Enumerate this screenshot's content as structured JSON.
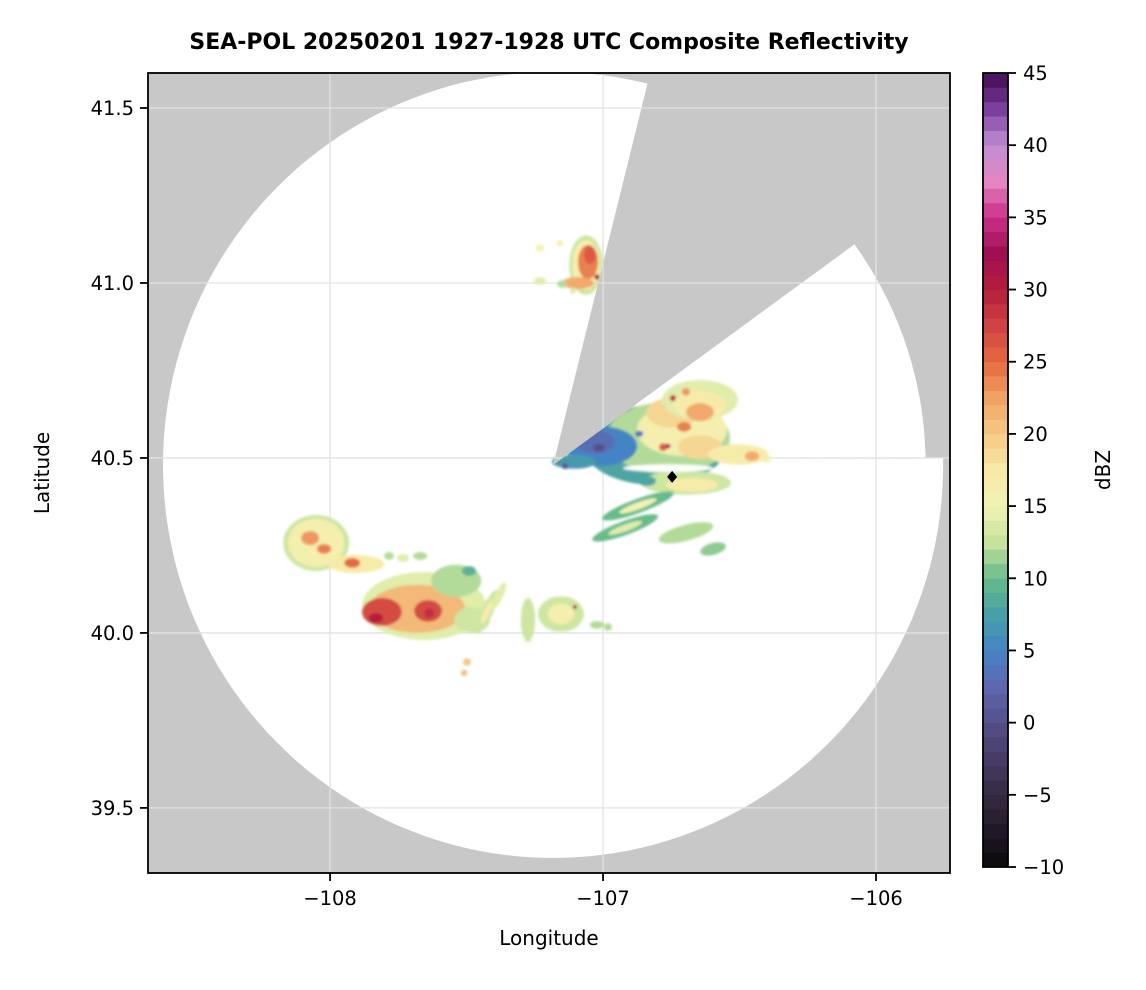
{
  "title": "SEA-POL 20250201 1927-1928 UTC Composite Reflectivity",
  "axes": {
    "xlabel": "Longitude",
    "ylabel": "Latitude",
    "lon_domain": [
      -108.667,
      -105.729
    ],
    "lat_domain": [
      39.314,
      41.6
    ],
    "x_ticks": [
      {
        "value": -108,
        "label": "−108"
      },
      {
        "value": -107,
        "label": "−107"
      },
      {
        "value": -106,
        "label": "−106"
      }
    ],
    "y_ticks": [
      {
        "value": 41.5,
        "label": "41.5"
      },
      {
        "value": 41.0,
        "label": "41.0"
      },
      {
        "value": 40.5,
        "label": "40.5"
      },
      {
        "value": 40.0,
        "label": "40.0"
      },
      {
        "value": 39.5,
        "label": "39.5"
      }
    ],
    "grid": true
  },
  "colorbar": {
    "label": "dBZ",
    "min": -10,
    "max": 45,
    "band_step": 1,
    "tick_values": [
      45,
      40,
      35,
      30,
      25,
      20,
      15,
      10,
      5,
      0,
      -5,
      -10
    ],
    "tick_labels": [
      "45",
      "40",
      "35",
      "30",
      "25",
      "20",
      "15",
      "10",
      "5",
      "0",
      "−5",
      "−10"
    ],
    "stops": [
      [
        -10,
        "#0b090c"
      ],
      [
        -7.5,
        "#211827"
      ],
      [
        -5,
        "#362b42"
      ],
      [
        -2.5,
        "#463c66"
      ],
      [
        0,
        "#555089"
      ],
      [
        2.5,
        "#5e68b0"
      ],
      [
        5,
        "#4584c4"
      ],
      [
        7.5,
        "#47a0a8"
      ],
      [
        10,
        "#68bb8a"
      ],
      [
        12.5,
        "#c5e39d"
      ],
      [
        15,
        "#f2f3b4"
      ],
      [
        17.5,
        "#f8e9a7"
      ],
      [
        20,
        "#f5c985"
      ],
      [
        22.5,
        "#f0a265"
      ],
      [
        25,
        "#e56940"
      ],
      [
        27.5,
        "#d04344"
      ],
      [
        30,
        "#b51e3d"
      ],
      [
        32.5,
        "#a00f53"
      ],
      [
        35,
        "#cb2f87"
      ],
      [
        37.5,
        "#e285c0"
      ],
      [
        40,
        "#c08fd4"
      ],
      [
        42.5,
        "#7b3f9e"
      ],
      [
        45,
        "#41094f"
      ]
    ]
  },
  "colors": {
    "figure_bg": "#ffffff",
    "no_coverage_gray": "#c8c8c8",
    "in_range_clear": "#ffffff",
    "gridline": "#e2e2e2",
    "frame": "#000000",
    "marker": "#000000"
  },
  "radar": {
    "center_lon": -107.183,
    "center_lat": 40.48,
    "range_lon_deg": 1.429,
    "range_lat_deg": 1.123,
    "gap_sector_start_deg": 14,
    "gap_sector_end_deg": 54,
    "short_sector_end_deg": 89,
    "short_range_factor": 0.955,
    "site_marker": {
      "shape": "diamond",
      "lon": -106.747,
      "lat": 40.446
    }
  },
  "chart_data": {
    "type": "heatmap",
    "title": "SEA-POL 20250201 1927-1928 UTC Composite Reflectivity",
    "xlabel": "Longitude",
    "ylabel": "Latitude",
    "value_label": "dBZ",
    "value_range": [
      -10,
      45
    ],
    "notes": "Radar composite reflectivity PPI. Gray = outside radar coverage (incl. blocked sector az 14-54 deg and reduced-range sector az 54-89 deg); white = in range, no echo. Echo blobs approximated as soft ellipses.",
    "echo_fields": [
      "lon",
      "lat",
      "rlon_deg",
      "rlat_deg",
      "rot_deg",
      "dbz",
      "color_override"
    ],
    "echoes": [
      [
        -107.062,
        41.051,
        0.062,
        0.085,
        0,
        13
      ],
      [
        -107.062,
        41.051,
        0.051,
        0.071,
        0,
        16
      ],
      [
        -107.055,
        41.06,
        0.037,
        0.049,
        0,
        24
      ],
      [
        -107.048,
        41.08,
        0.022,
        0.026,
        0,
        26
      ],
      [
        -107.092,
        41.0,
        0.059,
        0.017,
        0,
        22
      ],
      [
        -107.022,
        41.017,
        0.01,
        0.008,
        0,
        30
      ],
      [
        -107.231,
        41.1,
        0.015,
        0.011,
        0,
        15
      ],
      [
        -107.158,
        41.114,
        0.011,
        0.009,
        0,
        17
      ],
      [
        -107.231,
        41.006,
        0.022,
        0.011,
        0,
        14
      ],
      [
        -107.15,
        40.997,
        0.018,
        0.011,
        0,
        12
      ],
      [
        -107.11,
        40.977,
        0.011,
        0.009,
        0,
        14
      ],
      [
        -106.81,
        40.537,
        0.264,
        0.114,
        0,
        8
      ],
      [
        -106.762,
        40.557,
        0.227,
        0.103,
        0,
        12
      ],
      [
        -106.711,
        40.58,
        0.165,
        0.074,
        0,
        16
      ],
      [
        -106.747,
        40.629,
        0.095,
        0.043,
        0,
        19
      ],
      [
        -106.645,
        40.531,
        0.081,
        0.034,
        0,
        19
      ],
      [
        -106.78,
        40.531,
        0.015,
        0.011,
        0,
        26
      ],
      [
        -106.703,
        40.589,
        0.026,
        0.014,
        0,
        24
      ],
      [
        -106.762,
        40.651,
        0.015,
        0.011,
        0,
        24
      ],
      [
        -106.645,
        40.637,
        0.015,
        0.011,
        0,
        23
      ],
      [
        -106.762,
        40.534,
        0.009,
        0.007,
        0,
        33
      ],
      [
        -106.645,
        40.666,
        0.139,
        0.057,
        0,
        14
      ],
      [
        -106.645,
        40.651,
        0.095,
        0.04,
        0,
        17
      ],
      [
        -106.645,
        40.631,
        0.051,
        0.026,
        0,
        22
      ],
      [
        -106.744,
        40.671,
        0.011,
        0.009,
        0,
        29
      ],
      [
        -106.696,
        40.689,
        0.015,
        0.011,
        0,
        23
      ],
      [
        -106.868,
        40.569,
        0.015,
        0.009,
        0,
        4
      ],
      [
        -107.007,
        40.534,
        0.132,
        0.057,
        0,
        5
      ],
      [
        -107.029,
        40.546,
        0.073,
        0.034,
        0,
        3
      ],
      [
        -107.015,
        40.529,
        0.022,
        0.011,
        0,
        0
      ],
      [
        -107.062,
        40.58,
        0.015,
        0.011,
        0,
        1
      ],
      [
        -107.106,
        40.489,
        0.081,
        0.02,
        0,
        7
      ],
      [
        -107.139,
        40.477,
        0.011,
        0.009,
        0,
        1
      ],
      [
        -106.505,
        40.51,
        0.11,
        0.029,
        0,
        17
      ],
      [
        -106.454,
        40.505,
        0.026,
        0.014,
        0,
        22
      ],
      [
        -106.403,
        40.498,
        0.018,
        0.011,
        0,
        16
      ],
      [
        -106.696,
        40.429,
        0.165,
        0.034,
        0,
        13
      ],
      [
        -106.674,
        40.423,
        0.095,
        0.02,
        0,
        17
      ],
      [
        -106.839,
        40.434,
        0.033,
        0.014,
        0,
        8
      ],
      [
        -106.762,
        40.471,
        0.165,
        0.011,
        0,
        null,
        "#ffffff"
      ],
      [
        -106.872,
        40.363,
        0.139,
        0.02,
        -20,
        10
      ],
      [
        -106.872,
        40.363,
        0.073,
        0.01,
        -20,
        15
      ],
      [
        -106.919,
        40.3,
        0.128,
        0.02,
        -20,
        10
      ],
      [
        -106.919,
        40.3,
        0.066,
        0.01,
        -20,
        14
      ],
      [
        -106.696,
        40.286,
        0.103,
        0.023,
        -15,
        12
      ],
      [
        -106.597,
        40.24,
        0.048,
        0.017,
        -15,
        11
      ],
      [
        -108.051,
        40.257,
        0.121,
        0.08,
        0,
        13
      ],
      [
        -108.051,
        40.257,
        0.103,
        0.069,
        0,
        16
      ],
      [
        -108.073,
        40.271,
        0.033,
        0.02,
        0,
        23
      ],
      [
        -108.022,
        40.24,
        0.026,
        0.014,
        0,
        24
      ],
      [
        -107.905,
        40.197,
        0.103,
        0.026,
        0,
        17
      ],
      [
        -107.919,
        40.2,
        0.029,
        0.014,
        0,
        25
      ],
      [
        -107.784,
        40.22,
        0.018,
        0.011,
        0,
        12
      ],
      [
        -107.733,
        40.214,
        0.022,
        0.011,
        0,
        14
      ],
      [
        -107.67,
        40.22,
        0.026,
        0.011,
        0,
        12
      ],
      [
        -107.656,
        40.077,
        0.227,
        0.097,
        0,
        14
      ],
      [
        -107.681,
        40.069,
        0.176,
        0.069,
        0,
        21
      ],
      [
        -107.81,
        40.06,
        0.073,
        0.04,
        0,
        27
      ],
      [
        -107.641,
        40.063,
        0.051,
        0.031,
        0,
        27
      ],
      [
        -107.832,
        40.043,
        0.026,
        0.014,
        0,
        30
      ],
      [
        -107.637,
        40.057,
        0.018,
        0.014,
        0,
        29
      ],
      [
        -107.538,
        40.149,
        0.092,
        0.046,
        0,
        12
      ],
      [
        -107.491,
        40.177,
        0.026,
        0.014,
        0,
        9
      ],
      [
        -107.48,
        40.037,
        0.066,
        0.037,
        0,
        13
      ],
      [
        -107.425,
        40.06,
        0.088,
        0.017,
        -65,
        13
      ],
      [
        -107.425,
        40.06,
        0.048,
        0.009,
        -65,
        17
      ],
      [
        -107.381,
        40.106,
        0.055,
        0.011,
        -65,
        14
      ],
      [
        -107.275,
        40.037,
        0.026,
        0.063,
        0,
        13
      ],
      [
        -107.154,
        40.054,
        0.084,
        0.051,
        0,
        13
      ],
      [
        -107.154,
        40.054,
        0.048,
        0.029,
        0,
        16
      ],
      [
        -107.103,
        40.074,
        0.007,
        0.006,
        0,
        31
      ],
      [
        -107.022,
        40.023,
        0.026,
        0.011,
        0,
        12
      ],
      [
        -106.982,
        40.017,
        0.015,
        0.011,
        0,
        12
      ],
      [
        -107.498,
        39.917,
        0.015,
        0.011,
        0,
        20
      ],
      [
        -107.509,
        39.886,
        0.011,
        0.009,
        0,
        21
      ]
    ]
  }
}
